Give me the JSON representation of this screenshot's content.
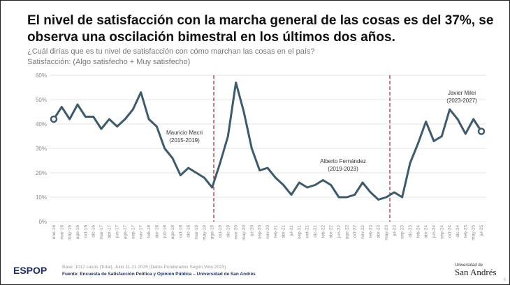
{
  "chart_data": {
    "type": "line",
    "title": "El nivel de satisfacción con la marcha general de las cosas es del 37%, se",
    "title_line2": "observa una oscilación bimestral en los últimos dos años.",
    "subtitle": "¿Cuál dirías que es tu nivel de satisfacción con cómo marchan las cosas en el país?",
    "subtitle2": "Satisfacción: (Algo satisfecho + Muy satisfecho)",
    "categories": [
      "ene-16",
      "mar-16",
      "may-16",
      "ago-16",
      "oct-16",
      "dic-16",
      "mar-17",
      "abr-17",
      "jun-17",
      "ago-17",
      "sep-17",
      "nov-17",
      "feb-18",
      "abr-18",
      "jun-18",
      "ago-18",
      "oct-18",
      "dic-18",
      "mar-19",
      "may-19",
      "ago-19",
      "oct-19",
      "dic-19",
      "mar-20",
      "may-20",
      "jul-20",
      "sep-20",
      "nov-20",
      "feb-21",
      "abr-21",
      "jul-21",
      "sep-21",
      "oct-21",
      "dic-21",
      "feb-22",
      "abr-22",
      "jun-22",
      "ago-22",
      "oct-22",
      "nov-22",
      "feb-23",
      "abr-23",
      "may-23",
      "jul-23",
      "sep-23",
      "dic-23",
      "feb-24",
      "abr-24",
      "jun-24",
      "sep-24",
      "oct-24",
      "dic-24",
      "feb-25",
      "may-25",
      "jul-25"
    ],
    "series": [
      {
        "color": "#3f5b6b",
        "values": [
          42,
          47,
          42,
          48,
          43,
          43,
          38,
          42,
          39,
          42,
          46,
          53,
          42,
          39,
          30,
          26,
          19,
          22,
          20,
          18,
          14,
          24,
          35,
          57,
          45,
          30,
          21,
          22,
          18,
          15,
          11,
          16,
          14,
          15,
          17,
          15,
          10,
          10,
          11,
          16,
          12,
          9,
          10,
          12,
          10,
          24,
          32,
          41,
          33,
          35,
          46,
          42,
          36,
          42,
          37
        ]
      }
    ],
    "ylim": [
      0,
      60
    ],
    "yticks": [
      {
        "value": 0,
        "label": "0%"
      },
      {
        "value": 10,
        "label": "10%"
      },
      {
        "value": 20,
        "label": "20%"
      },
      {
        "value": 30,
        "label": "30%"
      },
      {
        "value": 40,
        "label": "40%"
      },
      {
        "value": 50,
        "label": "50%"
      },
      {
        "value": 60,
        "label": "60%"
      }
    ],
    "grid": true,
    "annotations": [
      {
        "text": "Mauricio Macri",
        "text2": "(2015-2019)"
      },
      {
        "text": "Alberto Fernández",
        "text2": "(2019-2023)"
      },
      {
        "text": "Javier Milei",
        "text2": "(2023-2027)"
      }
    ]
  },
  "footer": {
    "logo": "ESPOP",
    "base": "Base: 1012 casos (Total), Julio 11-21 2025 (Datos Ponderados Según Voto 2023)",
    "source": "Fuente: Encuesta de Satisfacción Política y Opinión Pública – Universidad de San Andrés",
    "university_small": "Universidad de",
    "university": "San Andrés",
    "page": "6"
  }
}
